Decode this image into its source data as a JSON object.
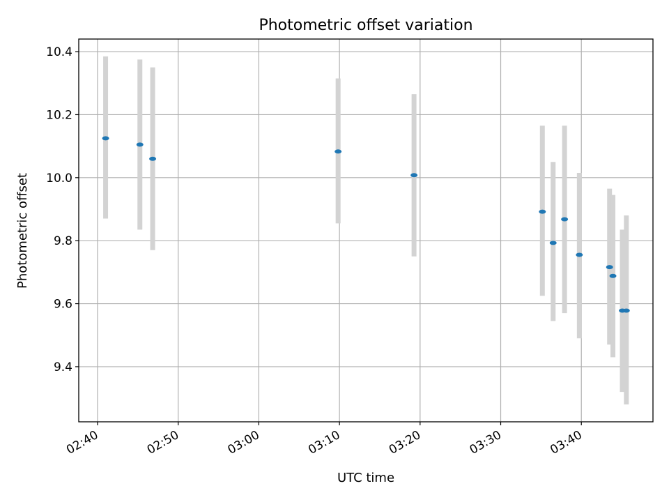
{
  "chart_data": {
    "type": "scatter",
    "title": "Photometric offset variation",
    "xlabel": "UTC time",
    "ylabel": "Photometric offset",
    "x_ticks": [
      "02:40",
      "02:50",
      "03:00",
      "03:10",
      "03:20",
      "03:30",
      "03:40"
    ],
    "y_ticks": [
      "9.4",
      "9.6",
      "9.8",
      "10.0",
      "10.2",
      "10.4"
    ],
    "xlim": [
      "02:37:40",
      "03:48:53"
    ],
    "ylim": [
      9.225,
      10.44
    ],
    "grid": true,
    "colors": {
      "point": "#1f77b4",
      "errorbar": "#d3d3d3",
      "grid": "#b0b0b0"
    },
    "points": [
      {
        "x": "02:41:00",
        "y": 10.125,
        "ylow": 9.87,
        "yhigh": 10.385
      },
      {
        "x": "02:45:15",
        "y": 10.105,
        "ylow": 9.835,
        "yhigh": 10.375
      },
      {
        "x": "02:46:50",
        "y": 10.06,
        "ylow": 9.77,
        "yhigh": 10.35
      },
      {
        "x": "03:09:50",
        "y": 10.083,
        "ylow": 9.855,
        "yhigh": 10.315
      },
      {
        "x": "03:19:15",
        "y": 10.008,
        "ylow": 9.75,
        "yhigh": 10.265
      },
      {
        "x": "03:35:10",
        "y": 9.892,
        "ylow": 9.625,
        "yhigh": 10.165
      },
      {
        "x": "03:36:30",
        "y": 9.793,
        "ylow": 9.545,
        "yhigh": 10.05
      },
      {
        "x": "03:37:55",
        "y": 9.868,
        "ylow": 9.57,
        "yhigh": 10.165
      },
      {
        "x": "03:39:45",
        "y": 9.755,
        "ylow": 9.49,
        "yhigh": 10.015
      },
      {
        "x": "03:43:30",
        "y": 9.716,
        "ylow": 9.47,
        "yhigh": 9.965
      },
      {
        "x": "03:43:55",
        "y": 9.688,
        "ylow": 9.43,
        "yhigh": 9.945
      },
      {
        "x": "03:45:05",
        "y": 9.578,
        "ylow": 9.32,
        "yhigh": 9.835
      },
      {
        "x": "03:45:35",
        "y": 9.578,
        "ylow": 9.28,
        "yhigh": 9.88
      }
    ]
  }
}
